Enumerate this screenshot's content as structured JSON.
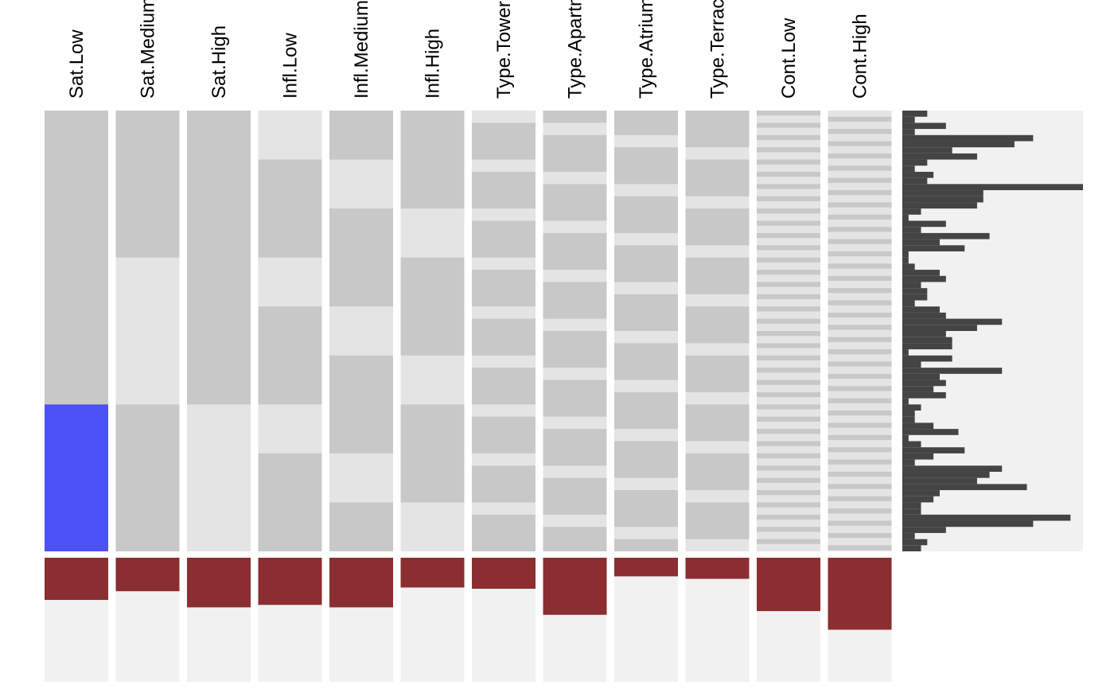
{
  "chart_data": {
    "type": "heatmap",
    "title": "",
    "columns": [
      "Sat.Low",
      "Sat.Medium",
      "Sat.High",
      "Infl.Low",
      "Infl.Medium",
      "Infl.High",
      "Type.Tower",
      "Type.Apartment",
      "Type.Atrium",
      "Type.Terrace",
      "Cont.Low",
      "Cont.High"
    ],
    "row_count": 72,
    "colors": {
      "cell_on": "#c8c8c8",
      "cell_off": "#e4e4e4",
      "highlight": "#4b52f7",
      "bar_panel_bg": "#f1f1f1",
      "bar_fill": "#444444",
      "frequency_fill": "#8b2e31"
    },
    "highlight": {
      "column": "Sat.Low",
      "from_row": 48,
      "to_row": 72
    },
    "row_bar_values": [
      4,
      2,
      7,
      2,
      21,
      18,
      8,
      12,
      4,
      2,
      5,
      4,
      29,
      13,
      13,
      12,
      3,
      1,
      7,
      3,
      14,
      6,
      10,
      1,
      1,
      2,
      6,
      7,
      3,
      4,
      4,
      2,
      6,
      7,
      16,
      12,
      7,
      8,
      8,
      1,
      8,
      3,
      16,
      6,
      7,
      5,
      7,
      1,
      3,
      2,
      2,
      5,
      9,
      1,
      3,
      10,
      5,
      2,
      16,
      14,
      12,
      20,
      6,
      5,
      3,
      3,
      27,
      21,
      7,
      2,
      4,
      3
    ],
    "column_frequencies": [
      0.34,
      0.27,
      0.4,
      0.38,
      0.4,
      0.24,
      0.25,
      0.46,
      0.15,
      0.17,
      0.43,
      0.58
    ],
    "frequency_scale_max": 1.0
  }
}
